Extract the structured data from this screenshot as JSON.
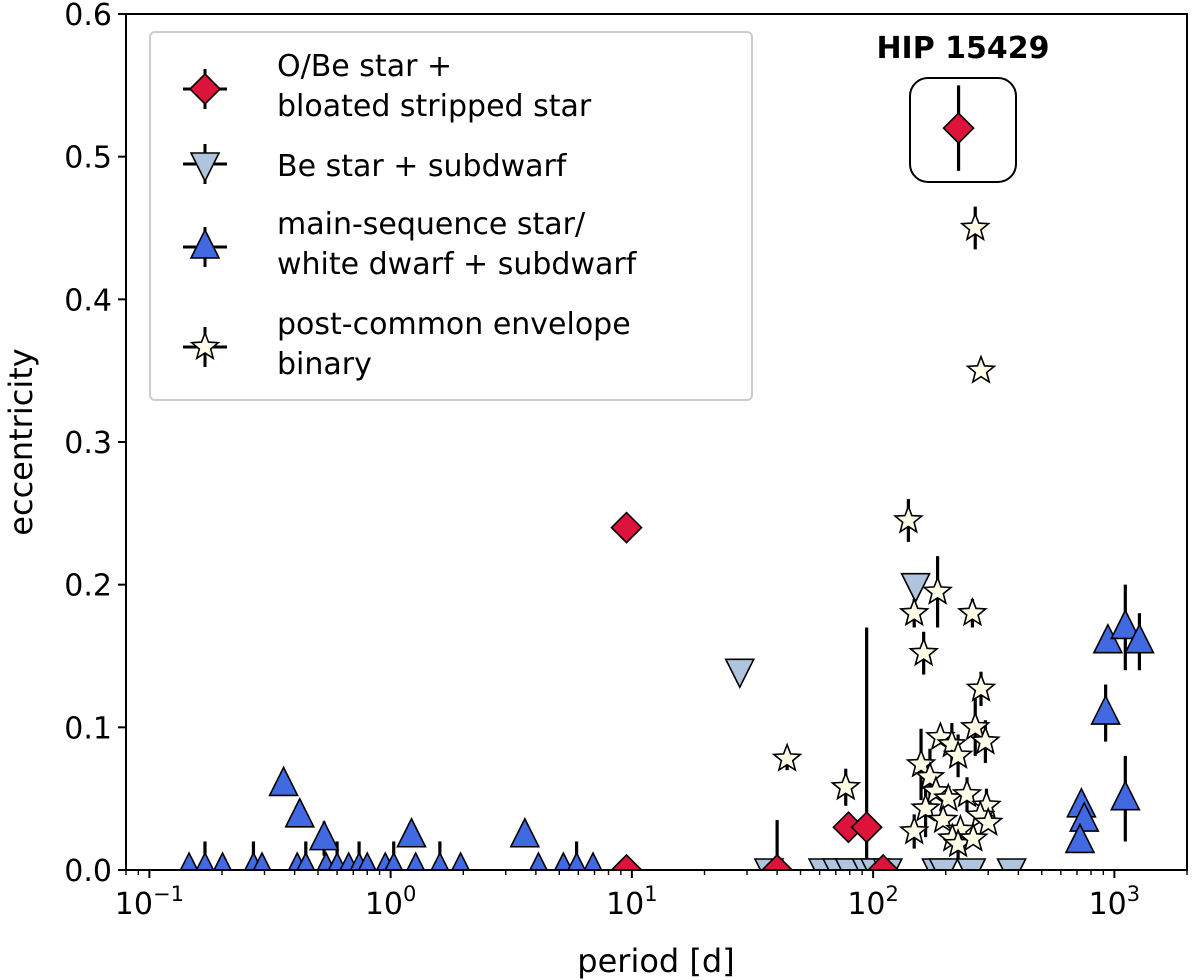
{
  "chart_data": {
    "type": "scatter",
    "xscale": "log",
    "xlim": [
      0.08,
      2000
    ],
    "ylim": [
      0,
      0.6
    ],
    "xlabel": "period [d]",
    "ylabel": "eccentricity",
    "xticks": [
      {
        "value": 0.1,
        "base": "10",
        "exp": "−1"
      },
      {
        "value": 1,
        "base": "10",
        "exp": "0"
      },
      {
        "value": 10,
        "base": "10",
        "exp": "1"
      },
      {
        "value": 100,
        "base": "10",
        "exp": "2"
      },
      {
        "value": 1000,
        "base": "10",
        "exp": "3"
      }
    ],
    "yticks": [
      "0.0",
      "0.1",
      "0.2",
      "0.3",
      "0.4",
      "0.5",
      "0.6"
    ],
    "legend": {
      "position": "top-left",
      "entries": [
        {
          "series": "ob_stripped",
          "lines": [
            "O/Be star +",
            "bloated stripped star"
          ]
        },
        {
          "series": "be_subdwarf",
          "lines": [
            "Be star + subdwarf"
          ]
        },
        {
          "series": "ms_wd_subdwarf",
          "lines": [
            "main-sequence star/",
            "white dwarf + subdwarf"
          ]
        },
        {
          "series": "pceb",
          "lines": [
            "post-common envelope",
            "binary"
          ]
        }
      ]
    },
    "annotation": {
      "text": "HIP 15429",
      "x": 226,
      "y": 0.52
    },
    "series": [
      {
        "id": "ob_stripped",
        "name": "O/Be star + bloated stripped star",
        "marker": "diamond",
        "color": "#dc143c",
        "points": [
          {
            "x": 226,
            "y": 0.52,
            "err": 0.03
          },
          {
            "x": 9.5,
            "y": 0.24
          },
          {
            "x": 9.5,
            "y": 0.0
          },
          {
            "x": 40,
            "y": 0.0,
            "err": 0.035
          },
          {
            "x": 79,
            "y": 0.03
          },
          {
            "x": 94,
            "y": 0.03
          },
          {
            "x": 110,
            "y": 0.0
          }
        ]
      },
      {
        "id": "be_subdwarf",
        "name": "Be star + subdwarf",
        "marker": "triangle-down",
        "color": "#b0c4de",
        "points": [
          {
            "x": 150,
            "y": 0.2
          },
          {
            "x": 28,
            "y": 0.14
          },
          {
            "x": 37,
            "y": 0.0
          },
          {
            "x": 62,
            "y": 0.0
          },
          {
            "x": 71,
            "y": 0.0
          },
          {
            "x": 80,
            "y": 0.0
          },
          {
            "x": 94,
            "y": 0.0,
            "err": 0.17
          },
          {
            "x": 102,
            "y": 0.0
          },
          {
            "x": 115,
            "y": 0.0
          },
          {
            "x": 183,
            "y": 0.0
          },
          {
            "x": 196,
            "y": 0.0
          },
          {
            "x": 255,
            "y": 0.0
          },
          {
            "x": 375,
            "y": 0.0
          }
        ]
      },
      {
        "id": "ms_wd_subdwarf",
        "name": "main-sequence star/white dwarf + subdwarf",
        "marker": "triangle-up",
        "color": "#4169e1",
        "points": [
          {
            "x": 0.146,
            "y": 0.0
          },
          {
            "x": 0.17,
            "y": 0.0,
            "err": 0.02
          },
          {
            "x": 0.201,
            "y": 0.0
          },
          {
            "x": 0.27,
            "y": 0.0,
            "err": 0.02
          },
          {
            "x": 0.293,
            "y": 0.0
          },
          {
            "x": 0.41,
            "y": 0.0
          },
          {
            "x": 0.445,
            "y": 0.0,
            "err": 0.02
          },
          {
            "x": 0.54,
            "y": 0.0
          },
          {
            "x": 0.6,
            "y": 0.0,
            "err": 0.02
          },
          {
            "x": 0.67,
            "y": 0.0
          },
          {
            "x": 0.74,
            "y": 0.0,
            "err": 0.02
          },
          {
            "x": 0.8,
            "y": 0.0
          },
          {
            "x": 0.95,
            "y": 0.0
          },
          {
            "x": 1.03,
            "y": 0.0,
            "err": 0.02
          },
          {
            "x": 1.27,
            "y": 0.0
          },
          {
            "x": 1.6,
            "y": 0.0,
            "err": 0.02
          },
          {
            "x": 1.95,
            "y": 0.0
          },
          {
            "x": 4.1,
            "y": 0.0
          },
          {
            "x": 5.2,
            "y": 0.0
          },
          {
            "x": 5.9,
            "y": 0.0,
            "err": 0.02
          },
          {
            "x": 6.9,
            "y": 0.0
          },
          {
            "x": 0.36,
            "y": 0.06
          },
          {
            "x": 0.42,
            "y": 0.038
          },
          {
            "x": 0.53,
            "y": 0.022,
            "err": 0.012
          },
          {
            "x": 1.22,
            "y": 0.024
          },
          {
            "x": 3.6,
            "y": 0.024
          },
          {
            "x": 730,
            "y": 0.045,
            "err": 0.01
          },
          {
            "x": 750,
            "y": 0.035
          },
          {
            "x": 720,
            "y": 0.02
          },
          {
            "x": 1110,
            "y": 0.05,
            "err": 0.03
          },
          {
            "x": 920,
            "y": 0.11,
            "err": 0.02
          },
          {
            "x": 940,
            "y": 0.16
          },
          {
            "x": 1110,
            "y": 0.17,
            "err": 0.03
          },
          {
            "x": 1270,
            "y": 0.16,
            "err": 0.02
          }
        ]
      },
      {
        "id": "pceb",
        "name": "post-common envelope binary",
        "marker": "star",
        "color": "#fffde8",
        "points": [
          {
            "x": 265,
            "y": 0.45,
            "err": 0.015
          },
          {
            "x": 280,
            "y": 0.35,
            "err": 0.005
          },
          {
            "x": 140,
            "y": 0.245,
            "err": 0.015
          },
          {
            "x": 185,
            "y": 0.195,
            "err": 0.025
          },
          {
            "x": 148,
            "y": 0.18,
            "err": 0.01
          },
          {
            "x": 258,
            "y": 0.18,
            "err": 0.01
          },
          {
            "x": 162,
            "y": 0.152,
            "err": 0.015
          },
          {
            "x": 280,
            "y": 0.127,
            "err": 0.012
          },
          {
            "x": 44,
            "y": 0.078,
            "err": 0.008
          },
          {
            "x": 77,
            "y": 0.058,
            "err": 0.013
          },
          {
            "x": 265,
            "y": 0.1,
            "err": 0.02
          },
          {
            "x": 190,
            "y": 0.093
          },
          {
            "x": 212,
            "y": 0.088,
            "err": 0.015
          },
          {
            "x": 292,
            "y": 0.09,
            "err": 0.015
          },
          {
            "x": 225,
            "y": 0.08,
            "err": 0.015
          },
          {
            "x": 158,
            "y": 0.074,
            "err": 0.025
          },
          {
            "x": 172,
            "y": 0.065,
            "err": 0.02
          },
          {
            "x": 182,
            "y": 0.055
          },
          {
            "x": 205,
            "y": 0.05
          },
          {
            "x": 245,
            "y": 0.053,
            "err": 0.012
          },
          {
            "x": 165,
            "y": 0.043,
            "err": 0.02
          },
          {
            "x": 295,
            "y": 0.045,
            "err": 0.012
          },
          {
            "x": 278,
            "y": 0.038
          },
          {
            "x": 300,
            "y": 0.033
          },
          {
            "x": 195,
            "y": 0.035
          },
          {
            "x": 148,
            "y": 0.027,
            "err": 0.012
          },
          {
            "x": 230,
            "y": 0.028
          },
          {
            "x": 213,
            "y": 0.022
          },
          {
            "x": 225,
            "y": 0.018,
            "err": 0.01
          },
          {
            "x": 260,
            "y": 0.022
          }
        ]
      }
    ]
  }
}
